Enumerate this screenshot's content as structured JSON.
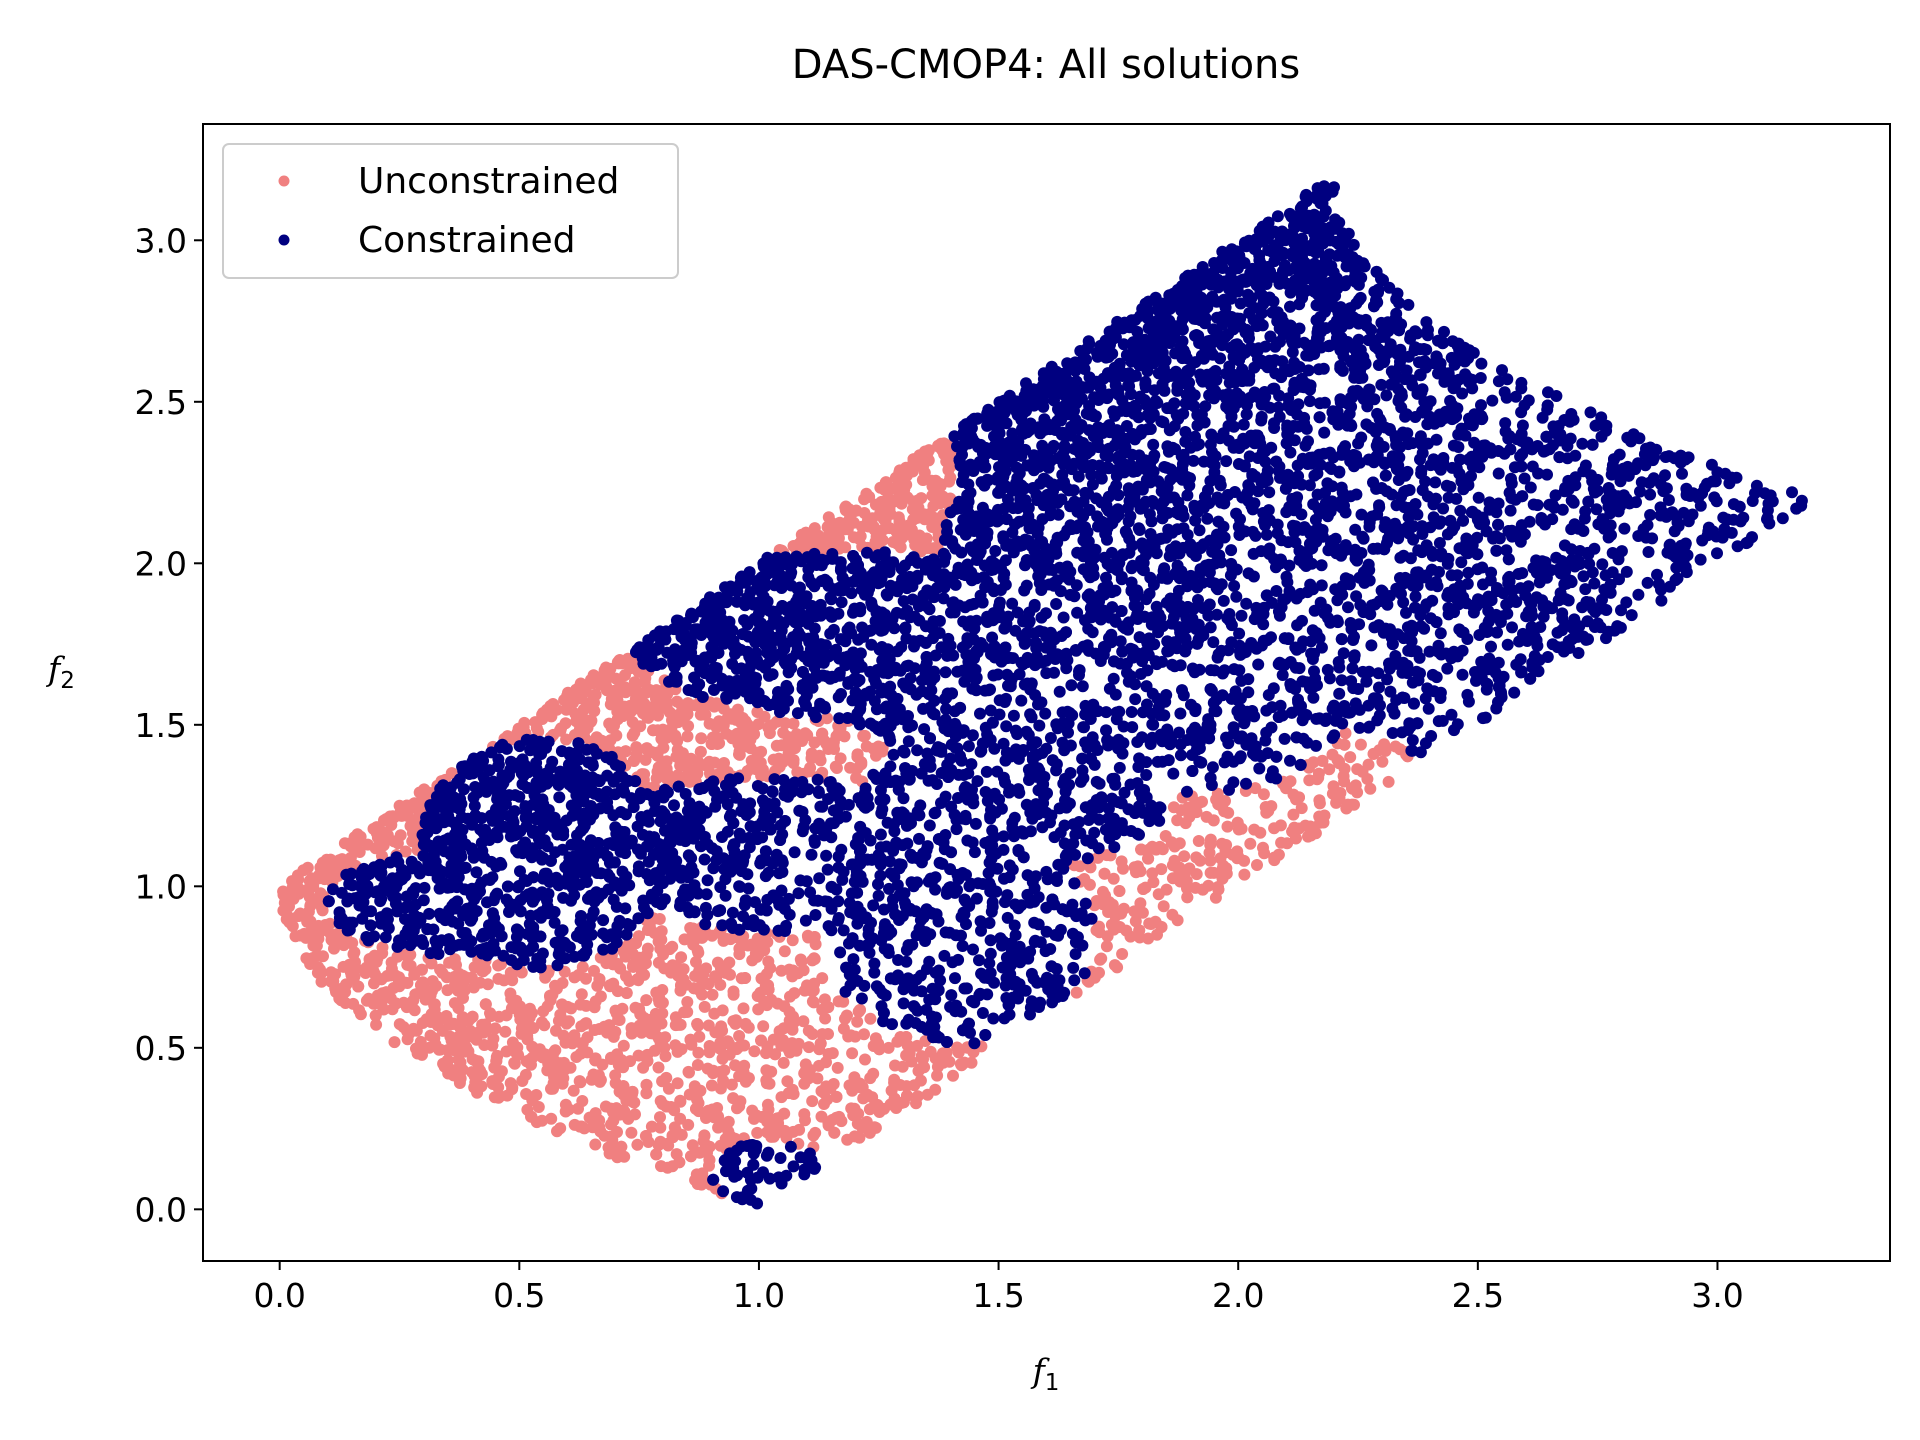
{
  "chart_data": {
    "type": "scatter",
    "title": "DAS-CMOP4: All solutions",
    "xlabel": {
      "base": "f",
      "sub": "1"
    },
    "ylabel": {
      "base": "f",
      "sub": "2"
    },
    "xlim": [
      -0.16,
      3.36
    ],
    "ylim": [
      -0.16,
      3.36
    ],
    "xticks": [
      "0.0",
      "0.5",
      "1.0",
      "1.5",
      "2.0",
      "2.5",
      "3.0"
    ],
    "xtick_values": [
      0,
      0.5,
      1.0,
      1.5,
      2.0,
      2.5,
      3.0
    ],
    "yticks": [
      "0.0",
      "0.5",
      "1.0",
      "1.5",
      "2.0",
      "2.5",
      "3.0"
    ],
    "ytick_values": [
      0,
      0.5,
      1.0,
      1.5,
      2.0,
      2.5,
      3.0
    ],
    "grid": false,
    "legend_position": "upper-left",
    "series": [
      {
        "name": "Unconstrained",
        "color": "#f08080",
        "region": {
          "front": "f2 = 1 - sqrt(f1), f1 in [0,1]",
          "shift_range": [
            0,
            2.2
          ]
        }
      },
      {
        "name": "Constrained",
        "color": "#000080",
        "blobs": [
          {
            "cx": 0.55,
            "cy": 1.1,
            "rx": 0.26,
            "ry": 0.36
          },
          {
            "cx": 0.35,
            "cy": 0.95,
            "rx": 0.25,
            "ry": 0.16
          },
          {
            "cx": 1.02,
            "cy": 0.11,
            "rx": 0.12,
            "ry": 0.1
          },
          {
            "cx": 1.05,
            "cy": 1.1,
            "rx": 0.45,
            "ry": 0.24
          },
          {
            "cx": 1.42,
            "cy": 0.85,
            "rx": 0.28,
            "ry": 0.34
          },
          {
            "cx": 1.18,
            "cy": 1.78,
            "rx": 0.45,
            "ry": 0.26
          },
          {
            "cx": 1.62,
            "cy": 2.05,
            "rx": 0.24,
            "ry": 0.32
          },
          {
            "cx": 1.55,
            "cy": 1.3,
            "rx": 0.32,
            "ry": 0.24
          },
          {
            "cx": 2.1,
            "cy": 1.02,
            "rx": 0.06,
            "ry": 0.06
          },
          {
            "cx": 1.92,
            "cy": 1.55,
            "rx": 0.3,
            "ry": 0.26
          }
        ],
        "bands": [
          [
            1.92,
            2.02
          ],
          [
            1.98,
            2.06
          ],
          [
            2.08,
            2.16
          ],
          [
            2.12,
            2.22
          ],
          [
            2.16,
            2.2
          ]
        ],
        "upper_shift_min": 1.48,
        "upper_shift_max": 2.2
      }
    ]
  }
}
